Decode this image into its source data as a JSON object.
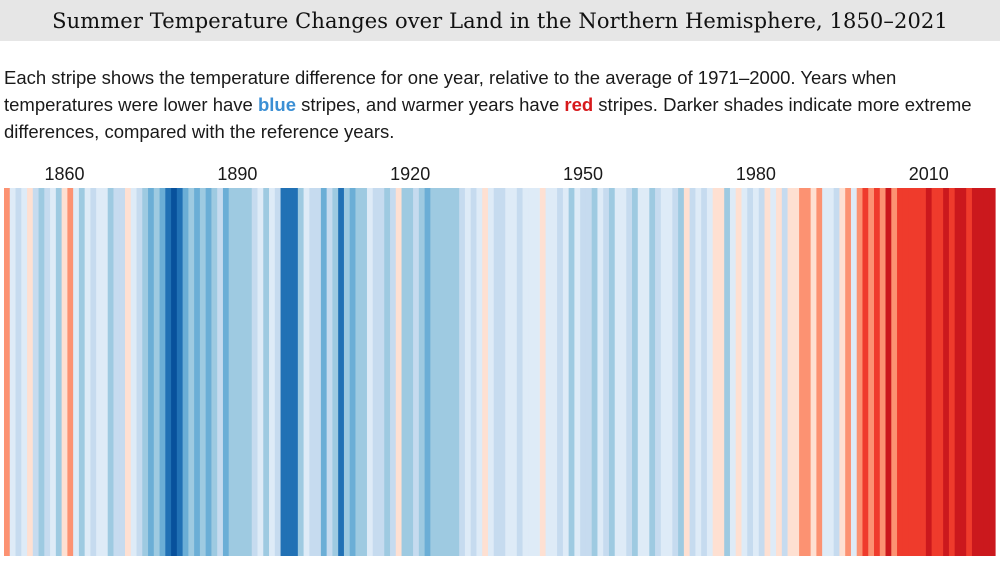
{
  "title": "Summer Temperature Changes over Land in the Northern Hemisphere, 1850–2021",
  "description": {
    "part1": "Each stripe shows the temperature difference for one year, relative to the average of 1971–2000. Years when temperatures were lower have ",
    "blue_word": "blue",
    "part2": " stripes, and warmer years have ",
    "red_word": "red",
    "part3": " stripes. Darker shades indicate more extreme differences, compared with the reference years."
  },
  "colors": {
    "blue_highlight": "#3b8fd4",
    "red_highlight": "#d7191c",
    "palette": [
      "#08519c",
      "#2171b5",
      "#6baed6",
      "#9ecae1",
      "#c6dbef",
      "#deebf7",
      "#fee0d2",
      "#fc9272",
      "#ef3b2c",
      "#cb181d",
      "#67000d"
    ]
  },
  "chart_data": {
    "type": "heatmap",
    "title": "Summer Temperature Changes over Land in the Northern Hemisphere, 1850–2021",
    "x_start": 1850,
    "x_end": 2021,
    "tick_labels": [
      "1860",
      "1890",
      "1920",
      "1950",
      "1980",
      "2010"
    ],
    "tick_years": [
      1860,
      1890,
      1920,
      1950,
      1980,
      2010
    ],
    "anomaly_scale": "0 = darkest blue (coldest), 5 = lightest blue, 6 = light red, 10 = darkest red (warmest)",
    "values": [
      7,
      5,
      4,
      5,
      6,
      4,
      3,
      4,
      5,
      3,
      6,
      7,
      5,
      3,
      5,
      4,
      5,
      5,
      3,
      4,
      4,
      6,
      5,
      4,
      3,
      2,
      3,
      2,
      1,
      0,
      1,
      2,
      3,
      2,
      3,
      2,
      3,
      4,
      2,
      3,
      3,
      3,
      3,
      4,
      5,
      3,
      5,
      4,
      1,
      1,
      1,
      3,
      5,
      4,
      4,
      2,
      4,
      3,
      1,
      3,
      2,
      3,
      3,
      5,
      4,
      4,
      3,
      4,
      6,
      3,
      3,
      4,
      3,
      2,
      3,
      3,
      3,
      3,
      3,
      4,
      5,
      4,
      5,
      6,
      5,
      4,
      4,
      5,
      5,
      4,
      5,
      5,
      5,
      6,
      5,
      5,
      4,
      5,
      3,
      5,
      4,
      4,
      3,
      5,
      4,
      3,
      5,
      5,
      4,
      3,
      5,
      5,
      3,
      4,
      5,
      5,
      4,
      3,
      6,
      4,
      5,
      4,
      5,
      6,
      6,
      3,
      5,
      6,
      5,
      4,
      5,
      4,
      6,
      5,
      6,
      4,
      6,
      6,
      7,
      7,
      6,
      7,
      5,
      5,
      4,
      6,
      7,
      5,
      7,
      8,
      7,
      8,
      7,
      9,
      7,
      8,
      8,
      8,
      8,
      8,
      9,
      8,
      8,
      9,
      8,
      9,
      9,
      8,
      9,
      9,
      9,
      9
    ]
  }
}
